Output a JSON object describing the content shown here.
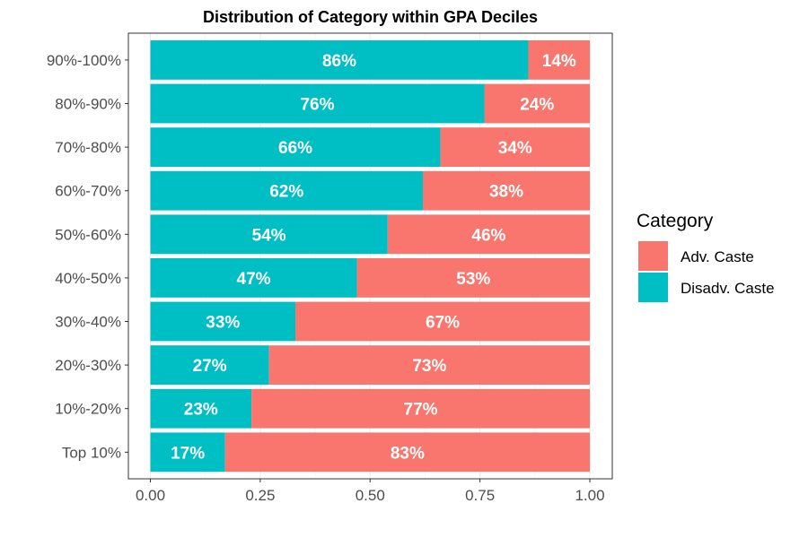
{
  "chart_data": {
    "type": "bar",
    "orientation": "horizontal",
    "stacked": true,
    "title": "Distribution of Category within GPA Deciles",
    "xlabel": "",
    "ylabel": "",
    "xlim": [
      0,
      1
    ],
    "x_ticks": [
      "0.00",
      "0.25",
      "0.50",
      "0.75",
      "1.00"
    ],
    "x_tick_values": [
      0,
      0.25,
      0.5,
      0.75,
      1.0
    ],
    "grid": true,
    "legend_position": "right",
    "legend_title": "Category",
    "categories": [
      "Top 10%",
      "10%-20%",
      "20%-30%",
      "30%-40%",
      "40%-50%",
      "50%-60%",
      "60%-70%",
      "70%-80%",
      "80%-90%",
      "90%-100%"
    ],
    "series": [
      {
        "name": "Disadv. Caste",
        "color": "#00BFC4",
        "values": [
          0.17,
          0.23,
          0.27,
          0.33,
          0.47,
          0.54,
          0.62,
          0.66,
          0.76,
          0.86
        ],
        "labels": [
          "17%",
          "23%",
          "27%",
          "33%",
          "47%",
          "54%",
          "62%",
          "66%",
          "76%",
          "86%"
        ]
      },
      {
        "name": "Adv. Caste",
        "color": "#F8766D",
        "values": [
          0.83,
          0.77,
          0.73,
          0.67,
          0.53,
          0.46,
          0.38,
          0.34,
          0.24,
          0.14
        ],
        "labels": [
          "83%",
          "77%",
          "73%",
          "67%",
          "53%",
          "46%",
          "38%",
          "34%",
          "24%",
          "14%"
        ]
      }
    ],
    "legend_entries": [
      {
        "name": "Adv. Caste",
        "color": "#F8766D"
      },
      {
        "name": "Disadv. Caste",
        "color": "#00BFC4"
      }
    ]
  }
}
